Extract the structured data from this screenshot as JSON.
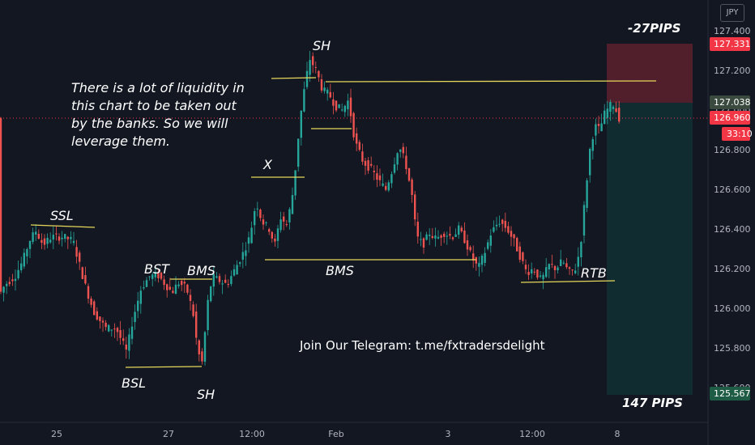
{
  "currency": "JPY",
  "telegram_text": "Join Our Telegram: t.me/fxtradersdelight",
  "note_lines": [
    "There is a lot of liquidity in",
    "this chart to be taken out",
    "by the banks. So we will",
    "leverage them."
  ],
  "labels": {
    "ssl": "SSL",
    "bsl": "BSL",
    "bst": "BST",
    "bms_left": "BMS",
    "bms_mid": "BMS",
    "sh_top": "SH",
    "sh_bottom": "SH",
    "x": "X",
    "rtb": "RTB",
    "pips_top": "-27PIPS",
    "pips_bottom": "147 PIPS"
  },
  "price_tags": [
    {
      "value": "127.331",
      "color": "#f23645"
    },
    {
      "value": "127.038",
      "color": "#3a4a3e"
    },
    {
      "value": "126.960",
      "color": "#f23645"
    },
    {
      "value": "33:10",
      "color": "#f23645"
    },
    {
      "value": "125.567",
      "color": "#1e5c45"
    }
  ],
  "chart_data": {
    "type": "candlestick",
    "y_ticks": [
      127.4,
      127.2,
      127.0,
      126.8,
      126.6,
      126.4,
      126.2,
      126.0,
      125.8,
      125.6
    ],
    "y_tick_labels": [
      "127.400",
      "127.200",
      "127.000",
      "126.800",
      "126.600",
      "126.400",
      "126.200",
      "126.000",
      "125.800",
      "125.600"
    ],
    "x_tick_labels": [
      "25",
      "27",
      "12:00",
      "Feb",
      "3",
      "12:00",
      "8"
    ],
    "current_price": 126.96,
    "stop_loss": 127.331,
    "entry": 127.038,
    "take_profit": 125.567,
    "trend_path": [
      [
        0,
        126.06
      ],
      [
        8,
        126.12
      ],
      [
        20,
        126.16
      ],
      [
        30,
        126.24
      ],
      [
        38,
        126.34
      ],
      [
        46,
        126.39
      ],
      [
        55,
        126.32
      ],
      [
        65,
        126.36
      ],
      [
        80,
        126.36
      ],
      [
        92,
        126.34
      ],
      [
        100,
        126.22
      ],
      [
        108,
        126.1
      ],
      [
        118,
        125.98
      ],
      [
        132,
        125.9
      ],
      [
        145,
        125.9
      ],
      [
        158,
        125.78
      ],
      [
        166,
        125.95
      ],
      [
        176,
        126.1
      ],
      [
        186,
        126.16
      ],
      [
        196,
        126.17
      ],
      [
        206,
        126.12
      ],
      [
        214,
        126.08
      ],
      [
        222,
        126.13
      ],
      [
        232,
        126.1
      ],
      [
        240,
        125.98
      ],
      [
        246,
        125.78
      ],
      [
        252,
        125.72
      ],
      [
        257,
        126.0
      ],
      [
        264,
        126.16
      ],
      [
        272,
        126.14
      ],
      [
        282,
        126.12
      ],
      [
        292,
        126.2
      ],
      [
        302,
        126.28
      ],
      [
        310,
        126.36
      ],
      [
        318,
        126.54
      ],
      [
        325,
        126.44
      ],
      [
        334,
        126.4
      ],
      [
        341,
        126.32
      ],
      [
        348,
        126.46
      ],
      [
        356,
        126.42
      ],
      [
        364,
        126.6
      ],
      [
        372,
        126.95
      ],
      [
        378,
        127.12
      ],
      [
        384,
        127.26
      ],
      [
        392,
        127.2
      ],
      [
        400,
        127.1
      ],
      [
        408,
        127.08
      ],
      [
        416,
        127.02
      ],
      [
        424,
        127.0
      ],
      [
        432,
        127.05
      ],
      [
        440,
        126.84
      ],
      [
        450,
        126.74
      ],
      [
        460,
        126.7
      ],
      [
        470,
        126.64
      ],
      [
        478,
        126.6
      ],
      [
        486,
        126.7
      ],
      [
        494,
        126.82
      ],
      [
        502,
        126.74
      ],
      [
        510,
        126.58
      ],
      [
        516,
        126.36
      ],
      [
        524,
        126.32
      ],
      [
        532,
        126.38
      ],
      [
        540,
        126.35
      ],
      [
        550,
        126.38
      ],
      [
        560,
        126.36
      ],
      [
        568,
        126.4
      ],
      [
        576,
        126.34
      ],
      [
        584,
        126.26
      ],
      [
        592,
        126.2
      ],
      [
        600,
        126.28
      ],
      [
        608,
        126.38
      ],
      [
        618,
        126.44
      ],
      [
        628,
        126.4
      ],
      [
        636,
        126.34
      ],
      [
        644,
        126.26
      ],
      [
        652,
        126.18
      ],
      [
        660,
        126.2
      ],
      [
        670,
        126.14
      ],
      [
        680,
        126.22
      ],
      [
        688,
        126.2
      ],
      [
        696,
        126.24
      ],
      [
        704,
        126.18
      ],
      [
        712,
        126.2
      ],
      [
        718,
        126.3
      ],
      [
        724,
        126.56
      ],
      [
        730,
        126.8
      ],
      [
        736,
        126.92
      ],
      [
        742,
        126.9
      ],
      [
        748,
        126.98
      ],
      [
        754,
        127.02
      ],
      [
        760,
        127.03
      ],
      [
        765,
        126.96
      ]
    ]
  }
}
